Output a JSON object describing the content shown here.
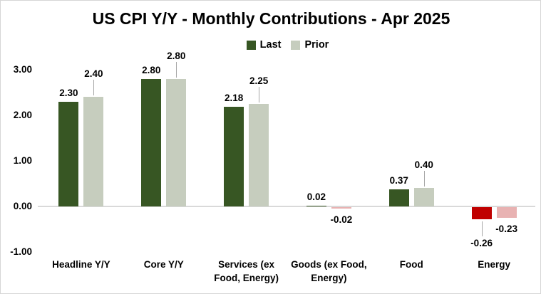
{
  "title": "US CPI Y/Y - Monthly Contributions - Apr 2025",
  "legend": {
    "items": [
      {
        "label": "Last",
        "color": "#375623"
      },
      {
        "label": "Prior",
        "color": "#c6cdbe"
      }
    ]
  },
  "chart_data": {
    "type": "bar",
    "title": "US CPI Y/Y - Monthly Contributions - Apr 2025",
    "categories": [
      "Headline Y/Y",
      "Core Y/Y",
      "Services (ex Food, Energy)",
      "Goods (ex Food, Energy)",
      "Food",
      "Energy"
    ],
    "series": [
      {
        "name": "Last",
        "values": [
          2.3,
          2.8,
          2.18,
          0.02,
          0.37,
          -0.26
        ],
        "labels": [
          "2.30",
          "2.80",
          "2.18",
          "0.02",
          "0.37",
          "-0.26"
        ],
        "positive_color": "#375623",
        "negative_color": "#c00000"
      },
      {
        "name": "Prior",
        "values": [
          2.4,
          2.8,
          2.25,
          -0.02,
          0.4,
          -0.23
        ],
        "labels": [
          "2.40",
          "2.80",
          "2.25",
          "-0.02",
          "0.40",
          "-0.23"
        ],
        "positive_color": "#c6cdbe",
        "negative_color": "#e8b2b2"
      }
    ],
    "ytick_labels": [
      "3.00",
      "2.00",
      "1.00",
      "0.00",
      "-1.00"
    ],
    "ytick_values": [
      3,
      2,
      1,
      0,
      -1
    ],
    "ylim": [
      -1.0,
      3.4
    ],
    "grid": false,
    "legend_position": "top-center",
    "xlabel": "",
    "ylabel": "",
    "leader_line_color": "#a6a6a6",
    "axis_line_color": "#d9d9d9"
  }
}
